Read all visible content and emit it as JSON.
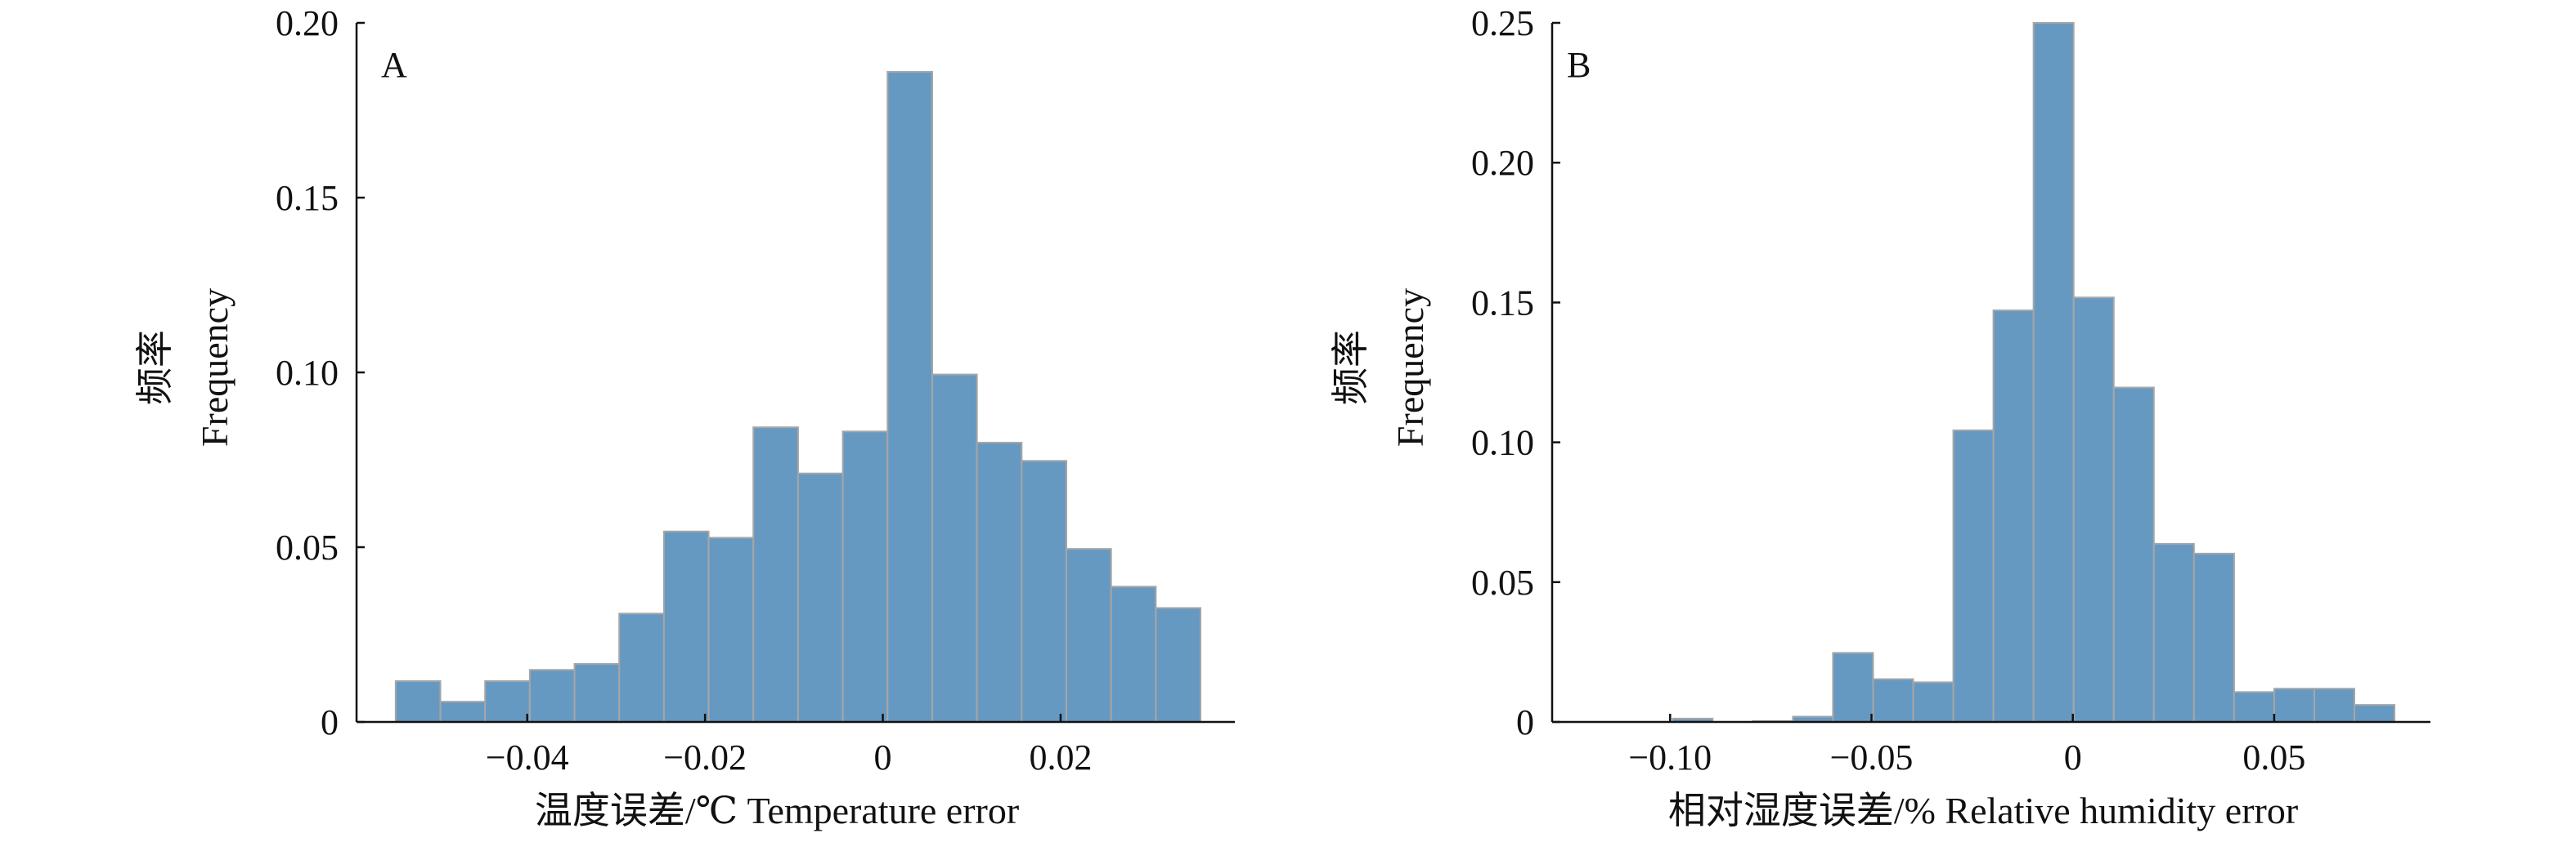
{
  "chart_data": [
    {
      "type": "bar",
      "panel_label": "A",
      "xlabel": "温度误差/℃ Temperature error",
      "ylabel_cn": "频率",
      "ylabel_en": "Frequency",
      "xlim": [
        -0.0592,
        0.0396
      ],
      "ylim": [
        0,
        0.2
      ],
      "xticks": [
        -0.04,
        -0.02,
        0,
        0.02
      ],
      "xtick_labels": [
        "−0.04",
        "−0.02",
        "0",
        "0.02"
      ],
      "yticks": [
        0,
        0.05,
        0.1,
        0.15,
        0.2
      ],
      "ytick_labels": [
        "0",
        "0.05",
        "0.10",
        "0.15",
        "0.20"
      ],
      "bin_start": -0.0548,
      "bin_width": 0.00503,
      "values": [
        0.0117,
        0.0058,
        0.0117,
        0.0149,
        0.0166,
        0.031,
        0.0545,
        0.0527,
        0.0843,
        0.0711,
        0.0831,
        0.186,
        0.0994,
        0.0799,
        0.0747,
        0.0495,
        0.0387,
        0.0326
      ],
      "bar_color": "#6699c2",
      "edge_color": "#a6a6a6",
      "grid": false
    },
    {
      "type": "bar",
      "panel_label": "B",
      "xlabel": "相对湿度误差/% Relative humidity error",
      "ylabel_cn": "频率",
      "ylabel_en": "Frequency",
      "xlim": [
        -0.1293,
        0.0888
      ],
      "ylim": [
        0,
        0.25
      ],
      "xticks": [
        -0.1,
        -0.05,
        0,
        0.05
      ],
      "xtick_labels": [
        "−0.10",
        "−0.05",
        "0",
        "0.05"
      ],
      "yticks": [
        0,
        0.05,
        0.1,
        0.15,
        0.2,
        0.25
      ],
      "ytick_labels": [
        "0",
        "0.05",
        "0.10",
        "0.15",
        "0.20",
        "0.25"
      ],
      "bin_start": -0.0994,
      "bin_width": 0.00996,
      "values": [
        0.0012,
        0,
        0.0003,
        0.0019,
        0.0247,
        0.0153,
        0.0142,
        0.1043,
        0.1472,
        0.25,
        0.1518,
        0.1196,
        0.0637,
        0.0602,
        0.0107,
        0.0119,
        0.0119,
        0.0061
      ],
      "bar_color": "#6699c2",
      "edge_color": "#a6a6a6",
      "grid": false
    }
  ]
}
